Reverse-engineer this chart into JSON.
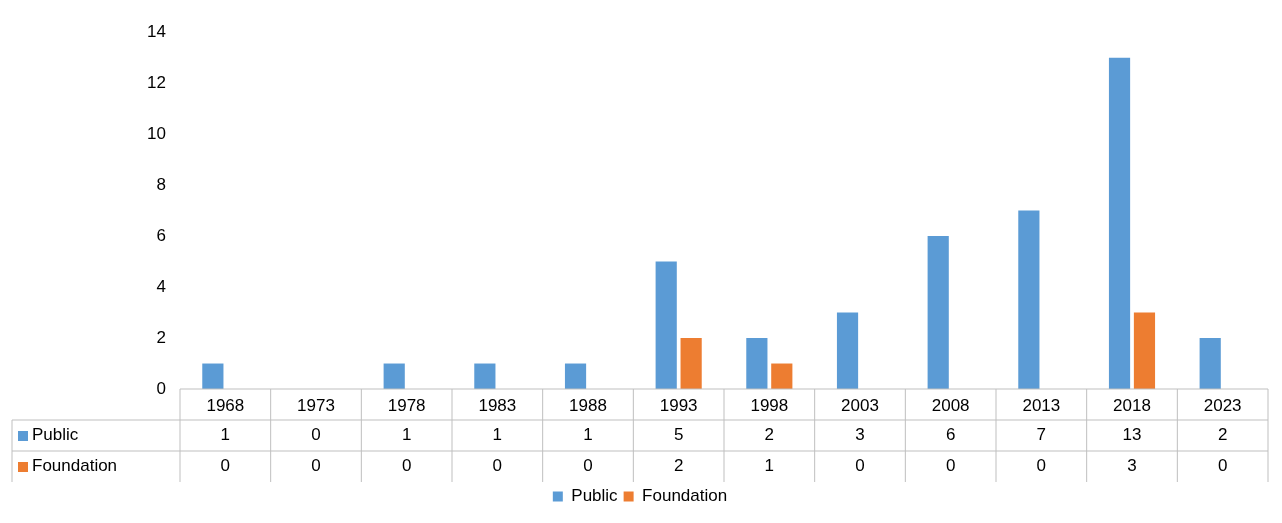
{
  "chart_data": {
    "type": "bar",
    "categories": [
      "1968",
      "1973",
      "1978",
      "1983",
      "1988",
      "1993",
      "1998",
      "2003",
      "2008",
      "2013",
      "2018",
      "2023"
    ],
    "series": [
      {
        "name": "Public",
        "color": "#5b9bd5",
        "values": [
          1,
          0,
          1,
          1,
          1,
          5,
          2,
          3,
          6,
          7,
          13,
          2
        ]
      },
      {
        "name": "Foundation",
        "color": "#ed7d31",
        "values": [
          0,
          0,
          0,
          0,
          0,
          2,
          1,
          0,
          0,
          0,
          3,
          0
        ]
      }
    ],
    "ylim": [
      0,
      14
    ],
    "yticks": [
      0,
      2,
      4,
      6,
      8,
      10,
      12,
      14
    ],
    "grid": false,
    "legend": "bottom",
    "data_labels": true
  }
}
